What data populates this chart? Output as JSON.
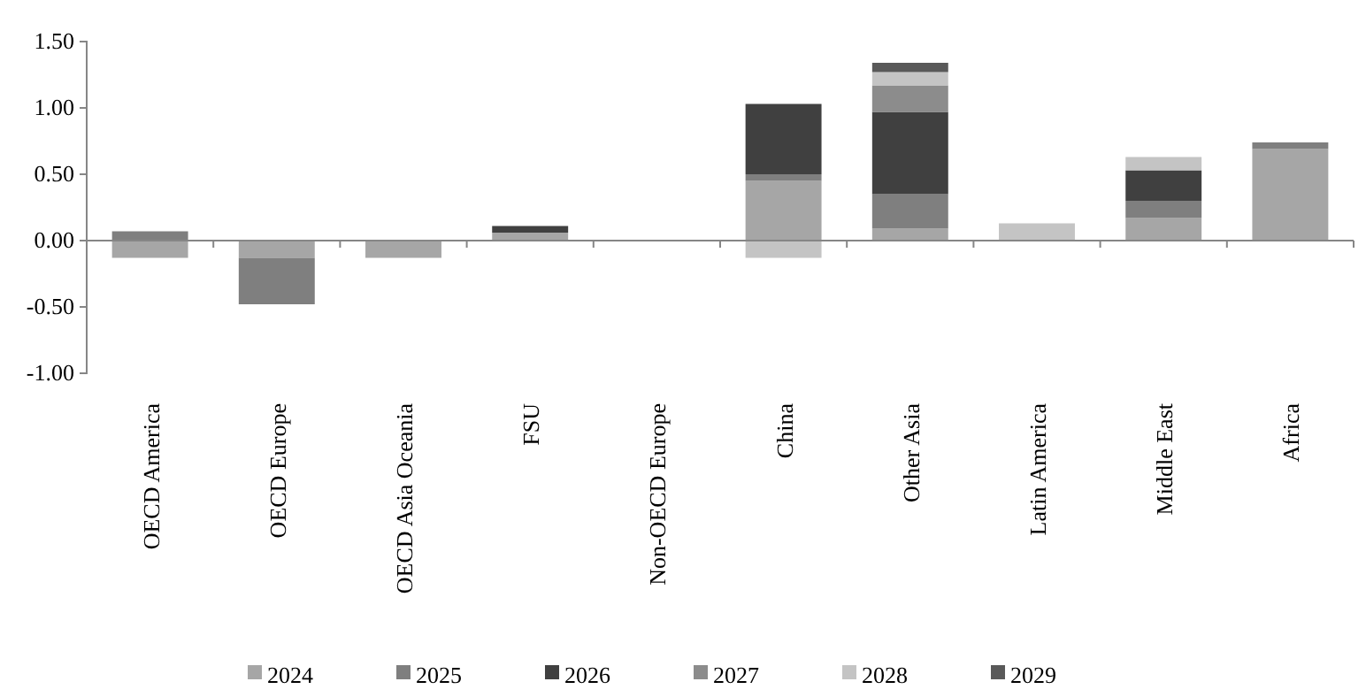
{
  "chart_data": {
    "type": "bar",
    "stacked": true,
    "categories": [
      "OECD America",
      "OECD Europe",
      "OECD Asia Oceania",
      "FSU",
      "Non-OECD Europe",
      "China",
      "Other Asia",
      "Latin America",
      "Middle East",
      "Africa"
    ],
    "series": [
      {
        "name": "2024",
        "color": "#a6a6a6",
        "values": [
          -0.13,
          -0.13,
          -0.13,
          0.06,
          null,
          0.45,
          0.09,
          null,
          0.17,
          0.69
        ]
      },
      {
        "name": "2025",
        "color": "#7f7f7f",
        "values": [
          0.07,
          -0.35,
          null,
          null,
          null,
          0.05,
          0.26,
          null,
          0.13,
          0.05
        ]
      },
      {
        "name": "2026",
        "color": "#404040",
        "values": [
          null,
          null,
          null,
          0.05,
          null,
          0.53,
          0.62,
          null,
          0.23,
          null
        ]
      },
      {
        "name": "2027",
        "color": "#8c8c8c",
        "values": [
          null,
          null,
          null,
          null,
          null,
          null,
          0.2,
          null,
          null,
          null
        ]
      },
      {
        "name": "2028",
        "color": "#c4c4c4",
        "values": [
          null,
          null,
          null,
          null,
          null,
          -0.13,
          0.1,
          0.13,
          0.1,
          null
        ]
      },
      {
        "name": "2029",
        "color": "#595959",
        "values": [
          null,
          null,
          null,
          null,
          null,
          null,
          0.07,
          null,
          null,
          null
        ]
      }
    ],
    "ylim": [
      -1,
      1.5
    ],
    "yticks": [
      {
        "value": -1,
        "label": "-1.00"
      },
      {
        "value": -0.5,
        "label": "-0.50"
      },
      {
        "value": 0,
        "label": "0.00"
      },
      {
        "value": 0.5,
        "label": "0.50"
      },
      {
        "value": 1,
        "label": "1.00"
      },
      {
        "value": 1.5,
        "label": "1.50"
      }
    ],
    "legend": "bottom"
  }
}
